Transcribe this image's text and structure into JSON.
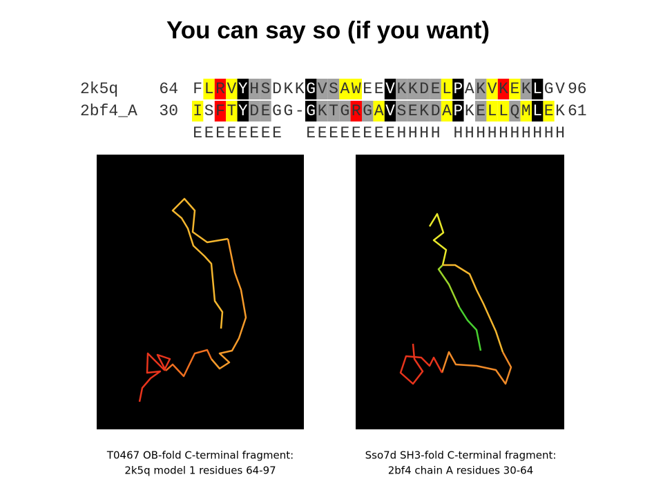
{
  "title": "You can say so (if you want)",
  "alignment": [
    {
      "name": "2k5q",
      "start": 64,
      "sequence": "FLRVYHSDKKGVSAWEEVKKDELPAKVKEKLGV",
      "end": 96
    },
    {
      "name": "2bf4_A",
      "start": 30,
      "sequence": "ISFTYDEGG-GKTGRGAVSEKDAPKELLQMLEK",
      "end": 61
    }
  ],
  "secondary_structure": "EEEEEEEE  EEEEEEEEHHHH HHHHHHHHHH",
  "panels": [
    {
      "caption_lines": [
        "T0467 OB-fold C-terminal fragment:",
        "2k5q model 1 residues 64-97"
      ]
    },
    {
      "caption_lines": [
        "Sso7d SH3-fold C-terminal fragment:",
        "2bf4 chain A residues 30-64"
      ]
    }
  ]
}
